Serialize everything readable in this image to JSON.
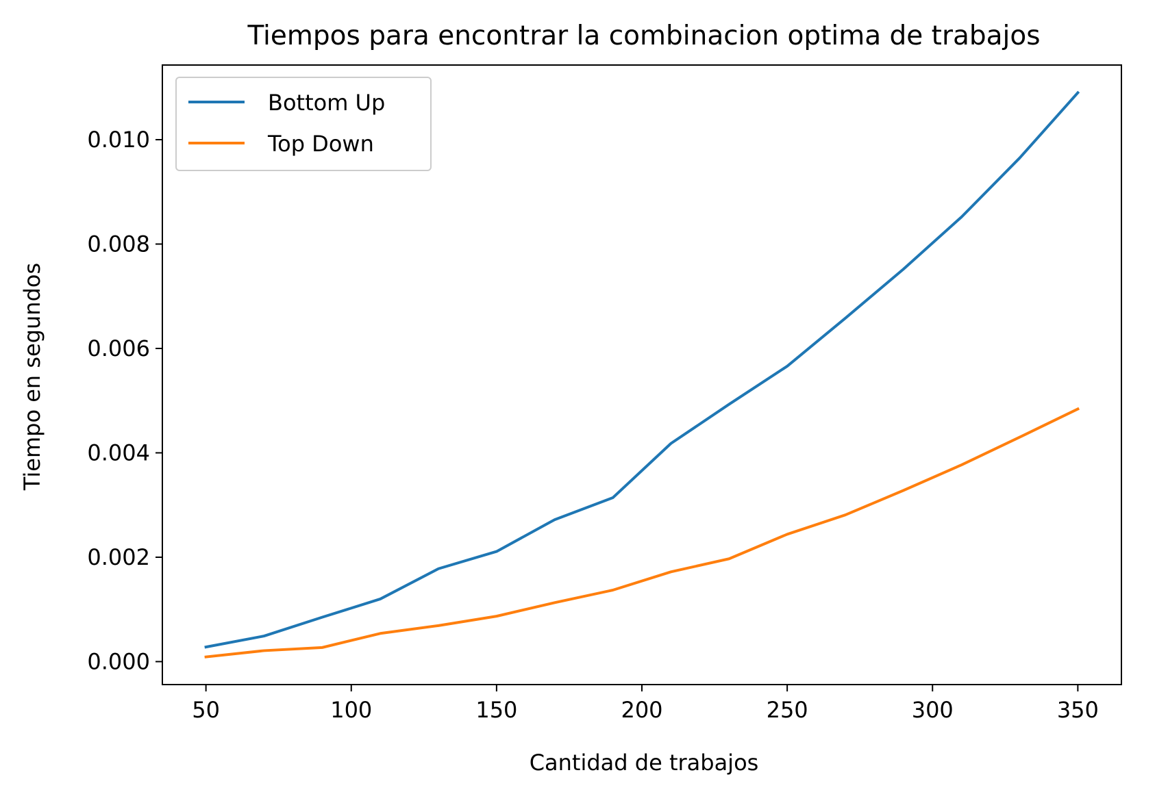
{
  "chart_data": {
    "type": "line",
    "title": "Tiempos para encontrar la combinacion optima de trabajos",
    "xlabel": "Cantidad de trabajos",
    "ylabel": "Tiempo en segundos",
    "x": [
      50,
      70,
      90,
      110,
      130,
      150,
      170,
      190,
      210,
      230,
      250,
      270,
      290,
      310,
      330,
      350
    ],
    "series": [
      {
        "name": "Bottom Up",
        "color": "#1f77b4",
        "values": [
          0.00028,
          0.00049,
          0.00085,
          0.0012,
          0.00178,
          0.00211,
          0.00272,
          0.00314,
          0.00418,
          0.00493,
          0.00566,
          0.00658,
          0.00752,
          0.00852,
          0.00965,
          0.0109
        ]
      },
      {
        "name": "Top Down",
        "color": "#ff7f0e",
        "values": [
          9e-05,
          0.00021,
          0.00027,
          0.00054,
          0.00069,
          0.00087,
          0.00113,
          0.00137,
          0.00172,
          0.00197,
          0.00244,
          0.00281,
          0.00328,
          0.00377,
          0.0043,
          0.00484
        ]
      }
    ],
    "xlim": [
      35,
      365
    ],
    "ylim": [
      -0.00044,
      0.01143
    ],
    "xticks": [
      50,
      100,
      150,
      200,
      250,
      300,
      350
    ],
    "xtick_labels": [
      "50",
      "100",
      "150",
      "200",
      "250",
      "300",
      "350"
    ],
    "yticks": [
      0.0,
      0.002,
      0.004,
      0.006,
      0.008,
      0.01
    ],
    "ytick_labels": [
      "0.000",
      "0.002",
      "0.004",
      "0.006",
      "0.008",
      "0.010"
    ],
    "grid": false,
    "legend_position": "upper-left"
  }
}
